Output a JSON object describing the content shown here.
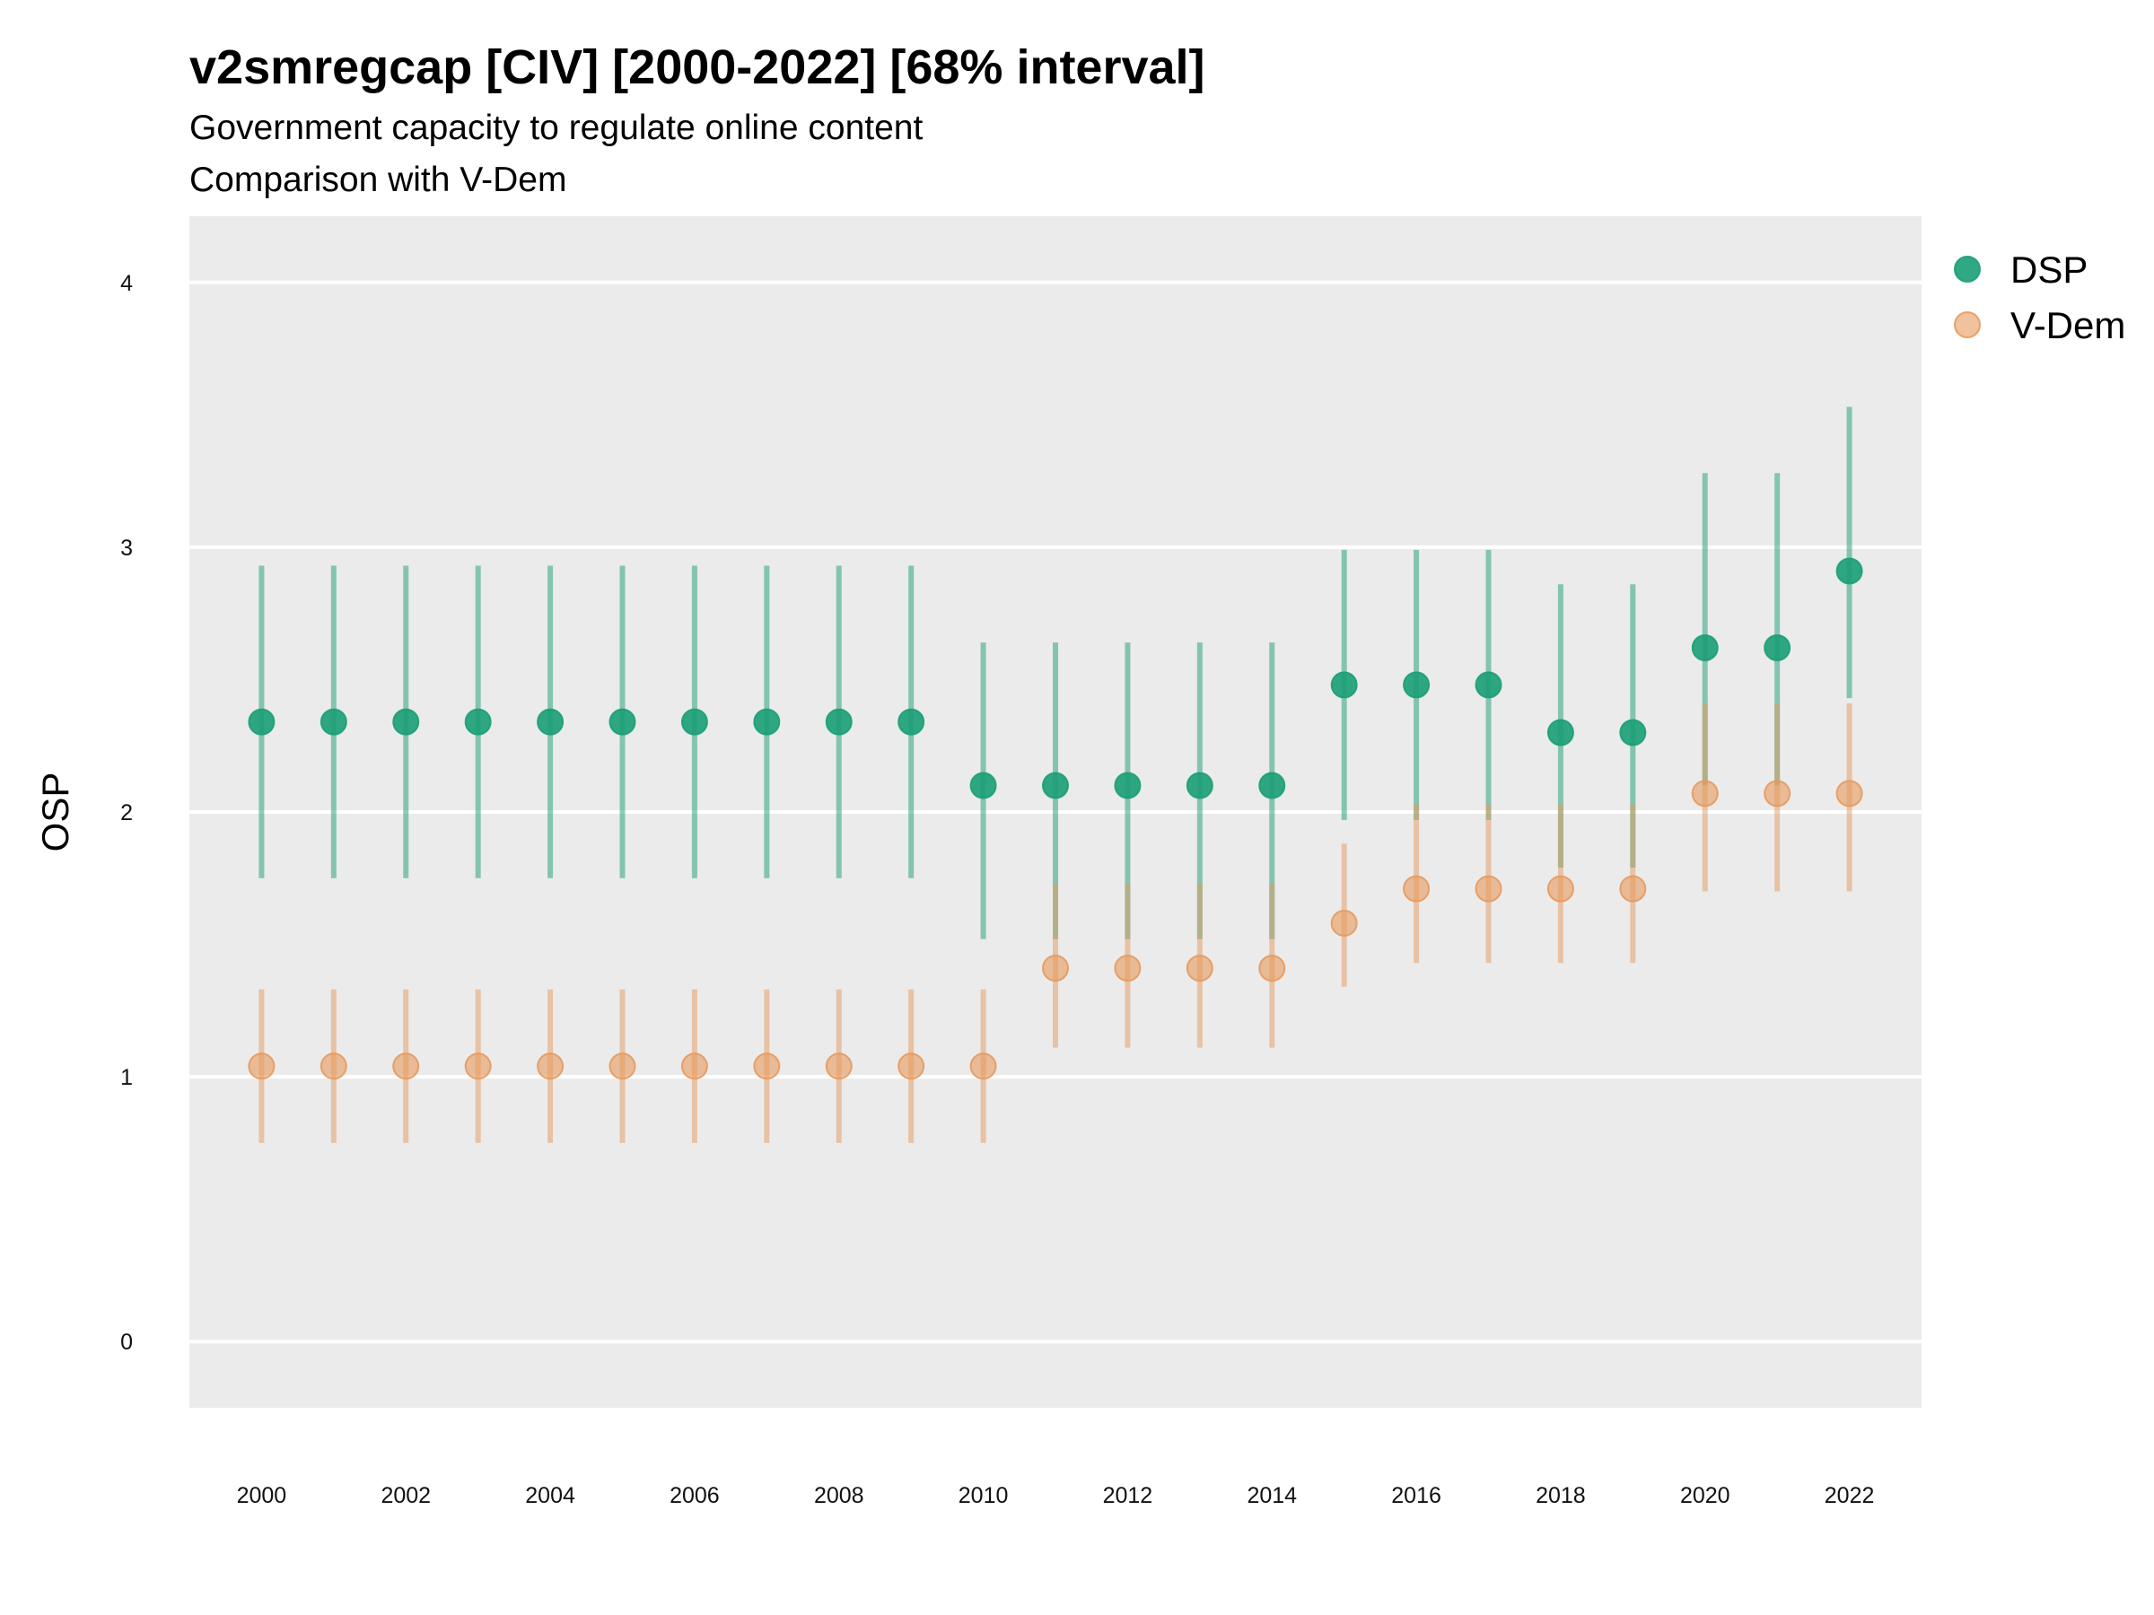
{
  "chart_data": {
    "type": "scatter",
    "title": "v2smregcap [CIV] [2000-2022] [68% interval]",
    "subtitle_lines": [
      "Government capacity to regulate online content",
      "Comparison with V-Dem"
    ],
    "ylabel": "OSP",
    "xlabel": "",
    "ylim": [
      -0.25,
      4.25
    ],
    "xlim": [
      1999.0,
      2023.0
    ],
    "y_ticks": [
      0,
      1,
      2,
      3,
      4
    ],
    "x_tick_labels": [
      "2000",
      "2002",
      "2004",
      "2006",
      "2008",
      "2010",
      "2012",
      "2014",
      "2016",
      "2018",
      "2020",
      "2022"
    ],
    "grid": true,
    "legend_position": "right",
    "x": [
      2000,
      2001,
      2002,
      2003,
      2004,
      2005,
      2006,
      2007,
      2008,
      2009,
      2010,
      2011,
      2012,
      2013,
      2014,
      2015,
      2016,
      2017,
      2018,
      2019,
      2020,
      2021,
      2022
    ],
    "series": [
      {
        "name": "DSP",
        "color": "#1b9e77",
        "values": [
          2.34,
          2.34,
          2.34,
          2.34,
          2.34,
          2.34,
          2.34,
          2.34,
          2.34,
          2.34,
          2.1,
          2.1,
          2.1,
          2.1,
          2.1,
          2.48,
          2.48,
          2.48,
          2.3,
          2.3,
          2.62,
          2.62,
          2.91
        ],
        "lower": [
          1.75,
          1.75,
          1.75,
          1.75,
          1.75,
          1.75,
          1.75,
          1.75,
          1.75,
          1.75,
          1.52,
          1.52,
          1.52,
          1.52,
          1.52,
          1.97,
          1.97,
          1.97,
          1.79,
          1.79,
          2.1,
          2.1,
          2.43
        ],
        "upper": [
          2.93,
          2.93,
          2.93,
          2.93,
          2.93,
          2.93,
          2.93,
          2.93,
          2.93,
          2.93,
          2.64,
          2.64,
          2.64,
          2.64,
          2.64,
          2.99,
          2.99,
          2.99,
          2.86,
          2.86,
          3.28,
          3.28,
          3.53
        ]
      },
      {
        "name": "V-Dem",
        "color": "#e69a5e",
        "values": [
          1.04,
          1.04,
          1.04,
          1.04,
          1.04,
          1.04,
          1.04,
          1.04,
          1.04,
          1.04,
          1.04,
          1.41,
          1.41,
          1.41,
          1.41,
          1.58,
          1.71,
          1.71,
          1.71,
          1.71,
          2.07,
          2.07,
          2.07
        ],
        "lower": [
          0.75,
          0.75,
          0.75,
          0.75,
          0.75,
          0.75,
          0.75,
          0.75,
          0.75,
          0.75,
          0.75,
          1.11,
          1.11,
          1.11,
          1.11,
          1.34,
          1.43,
          1.43,
          1.43,
          1.43,
          1.7,
          1.7,
          1.7
        ],
        "upper": [
          1.33,
          1.33,
          1.33,
          1.33,
          1.33,
          1.33,
          1.33,
          1.33,
          1.33,
          1.33,
          1.33,
          1.73,
          1.73,
          1.73,
          1.73,
          1.88,
          2.03,
          2.03,
          2.03,
          2.03,
          2.41,
          2.41,
          2.41
        ]
      }
    ]
  }
}
